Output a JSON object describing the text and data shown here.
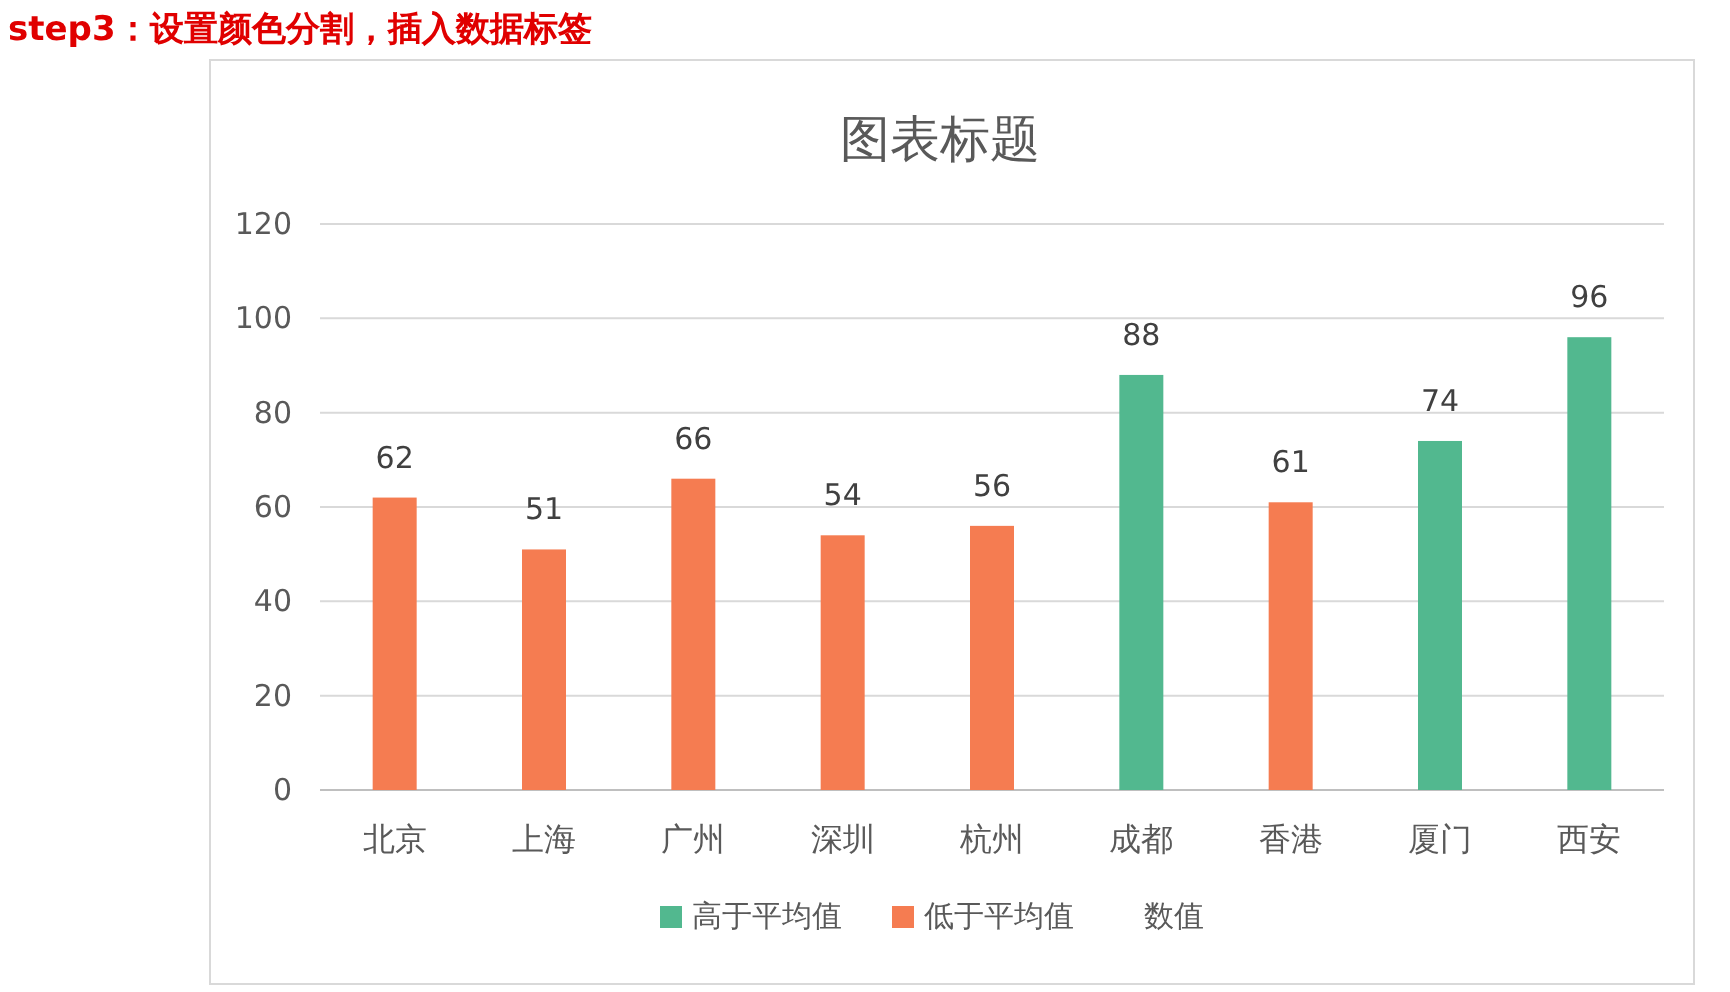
{
  "chart_data": {
    "type": "bar",
    "title": "图表标题",
    "categories": [
      "北京",
      "上海",
      "广州",
      "深圳",
      "杭州",
      "成都",
      "香港",
      "厦门",
      "西安"
    ],
    "series": [
      {
        "name": "高于平均值",
        "color": "#52b88f",
        "values": [
          null,
          null,
          null,
          null,
          null,
          88,
          null,
          74,
          96
        ]
      },
      {
        "name": "低于平均值",
        "color": "#f57c51",
        "values": [
          62,
          51,
          66,
          54,
          56,
          null,
          61,
          null,
          null
        ]
      }
    ],
    "data_labels": true,
    "ylim": [
      0,
      120
    ],
    "yticks": [
      0,
      20,
      40,
      60,
      80,
      100,
      120
    ],
    "grid": "y",
    "legend": "bottom",
    "annotations": [
      "step3：设置颜色分割，插入数据标签",
      "数值"
    ]
  }
}
